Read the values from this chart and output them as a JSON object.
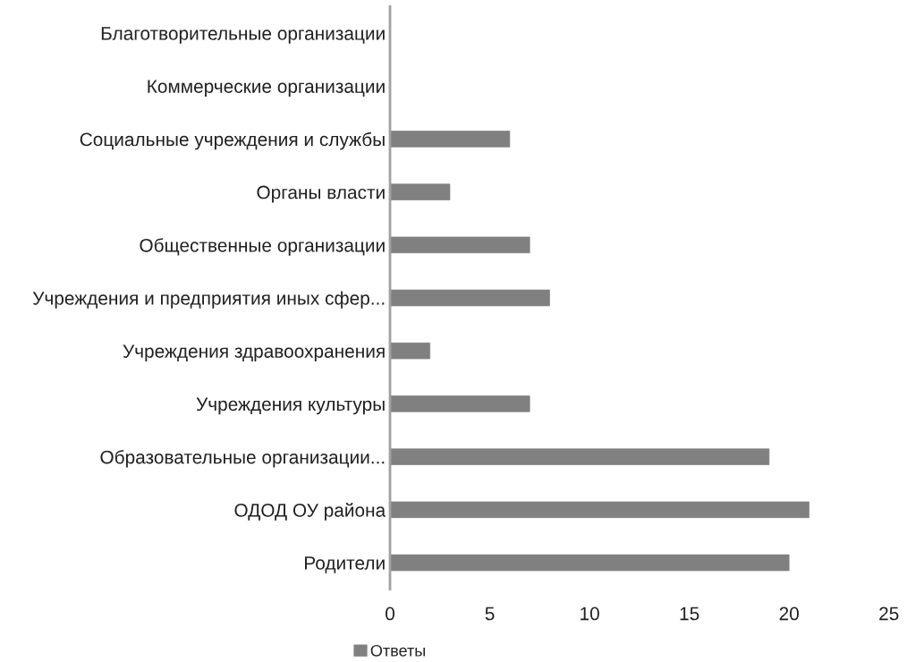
{
  "chart_data": {
    "type": "bar",
    "orientation": "horizontal",
    "categories": [
      "Благотворительные организации",
      "Коммерческие организации",
      "Социальные учреждения и службы",
      "Органы власти",
      "Общественные организации",
      "Учреждения и предприятия иных сфер...",
      "Учреждения здравоохранения",
      "Учреждения культуры",
      "Образовательные организации...",
      "ОДОД ОУ района",
      "Родители"
    ],
    "series": [
      {
        "name": "Ответы",
        "color": "#808080",
        "values": [
          0,
          0,
          6,
          3,
          7,
          8,
          2,
          7,
          19,
          21,
          20
        ]
      }
    ],
    "xlim": [
      0,
      25
    ],
    "xticks": [
      0,
      5,
      10,
      15,
      20,
      25
    ],
    "grid": false,
    "legend": "bottom"
  }
}
